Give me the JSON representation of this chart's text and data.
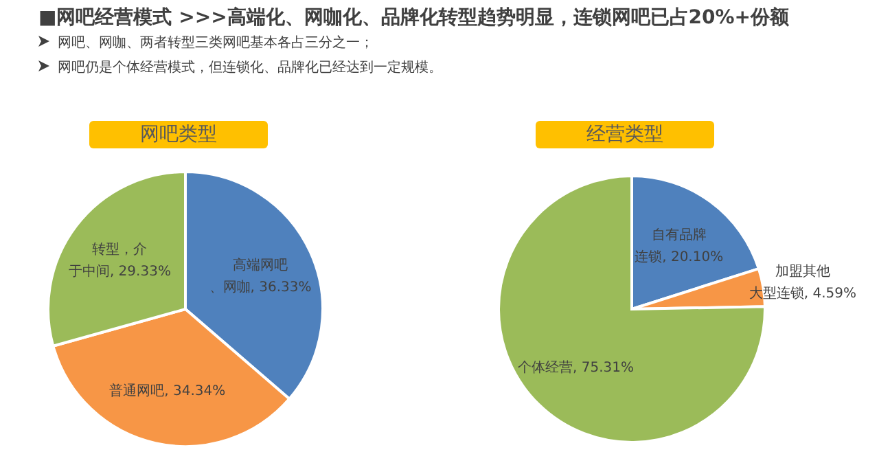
{
  "chart_data": [
    {
      "type": "pie",
      "title": "网吧类型",
      "annotations": [
        "■网吧经营模式  >>>高端化、网咖化、品牌化转型趋势明显，连锁网吧已占20%+份额",
        "网吧、网咖、两者转型三类网吧基本各占三分之一；",
        "网吧仍是个体经营模式，但连锁化、品牌化已经达到一定规模。"
      ],
      "categories": [
        "高端网吧、网咖",
        "普通网吧",
        "转型，介于中间"
      ],
      "values": [
        36.33,
        34.34,
        29.33
      ],
      "value_labels": [
        "36.33%",
        "34.34%",
        "29.33%"
      ],
      "colors": [
        "#4f81bd",
        "#f79646",
        "#9bbb59"
      ]
    },
    {
      "type": "pie",
      "title": "经营类型",
      "categories": [
        "自有品牌连锁",
        "加盟其他大型连锁",
        "个体经营"
      ],
      "values": [
        20.1,
        4.59,
        75.31
      ],
      "value_labels": [
        "20.10%",
        "4.59%",
        "75.31%"
      ],
      "colors": [
        "#4f81bd",
        "#f79646",
        "#9bbb59"
      ]
    }
  ]
}
